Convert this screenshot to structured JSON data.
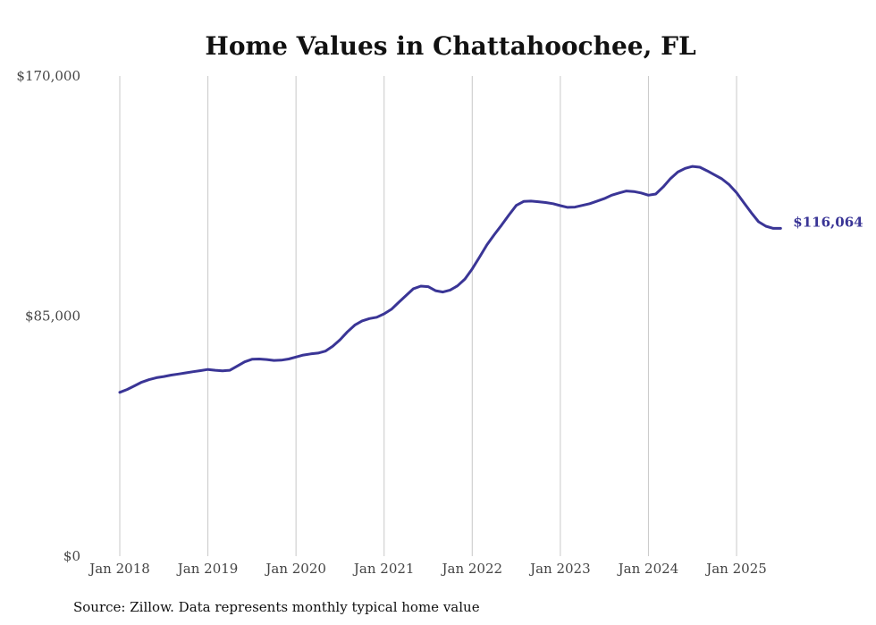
{
  "chart_data": {
    "type": "line",
    "title": "Home Values in Chattahoochee, FL",
    "source": "Source: Zillow. Data represents monthly typical home value",
    "xlabel": "",
    "ylabel": "",
    "ylim": [
      0,
      170000
    ],
    "yticks": [
      {
        "value": 0,
        "label": "$0"
      },
      {
        "value": 85000,
        "label": "$85,000"
      },
      {
        "value": 170000,
        "label": "$170,000"
      }
    ],
    "xlim": [
      2018.0,
      2025.5
    ],
    "xticks": [
      {
        "value": 2018,
        "label": "Jan 2018"
      },
      {
        "value": 2019,
        "label": "Jan 2019"
      },
      {
        "value": 2020,
        "label": "Jan 2020"
      },
      {
        "value": 2021,
        "label": "Jan 2021"
      },
      {
        "value": 2022,
        "label": "Jan 2022"
      },
      {
        "value": 2023,
        "label": "Jan 2023"
      },
      {
        "value": 2024,
        "label": "Jan 2024"
      },
      {
        "value": 2025,
        "label": "Jan 2025"
      }
    ],
    "grid": "vertical",
    "line_color": "#3a3596",
    "end_label": "$116,064",
    "series": [
      {
        "name": "Typical home value",
        "x": [
          2018.0,
          2018.083,
          2018.167,
          2018.25,
          2018.333,
          2018.417,
          2018.5,
          2018.583,
          2018.667,
          2018.75,
          2018.833,
          2018.917,
          2019.0,
          2019.083,
          2019.167,
          2019.25,
          2019.333,
          2019.417,
          2019.5,
          2019.583,
          2019.667,
          2019.75,
          2019.833,
          2019.917,
          2020.0,
          2020.083,
          2020.167,
          2020.25,
          2020.333,
          2020.417,
          2020.5,
          2020.583,
          2020.667,
          2020.75,
          2020.833,
          2020.917,
          2021.0,
          2021.083,
          2021.167,
          2021.25,
          2021.333,
          2021.417,
          2021.5,
          2021.583,
          2021.667,
          2021.75,
          2021.833,
          2021.917,
          2022.0,
          2022.083,
          2022.167,
          2022.25,
          2022.333,
          2022.417,
          2022.5,
          2022.583,
          2022.667,
          2022.75,
          2022.833,
          2022.917,
          2023.0,
          2023.083,
          2023.167,
          2023.25,
          2023.333,
          2023.417,
          2023.5,
          2023.583,
          2023.667,
          2023.75,
          2023.833,
          2023.917,
          2024.0,
          2024.083,
          2024.167,
          2024.25,
          2024.333,
          2024.417,
          2024.5,
          2024.583,
          2024.667,
          2024.75,
          2024.833,
          2024.917,
          2025.0,
          2025.083,
          2025.167,
          2025.25,
          2025.333,
          2025.417,
          2025.5
        ],
        "values": [
          58000,
          59000,
          60300,
          61600,
          62500,
          63200,
          63600,
          64100,
          64500,
          64900,
          65300,
          65700,
          66100,
          65800,
          65600,
          65800,
          67300,
          68800,
          69700,
          69800,
          69600,
          69300,
          69400,
          69800,
          70500,
          71200,
          71600,
          71900,
          72600,
          74300,
          76600,
          79400,
          81800,
          83300,
          84100,
          84600,
          85800,
          87400,
          89900,
          92300,
          94700,
          95600,
          95400,
          94000,
          93500,
          94200,
          95700,
          98100,
          101700,
          105900,
          110200,
          113800,
          117200,
          120800,
          124200,
          125600,
          125700,
          125500,
          125200,
          124800,
          124100,
          123500,
          123600,
          124200,
          124800,
          125700,
          126600,
          127800,
          128600,
          129300,
          129100,
          128600,
          127800,
          128200,
          130700,
          133700,
          136000,
          137300,
          138000,
          137700,
          136400,
          135000,
          133600,
          131500,
          128700,
          125100,
          121600,
          118400,
          116800,
          116064,
          116064
        ]
      }
    ]
  }
}
